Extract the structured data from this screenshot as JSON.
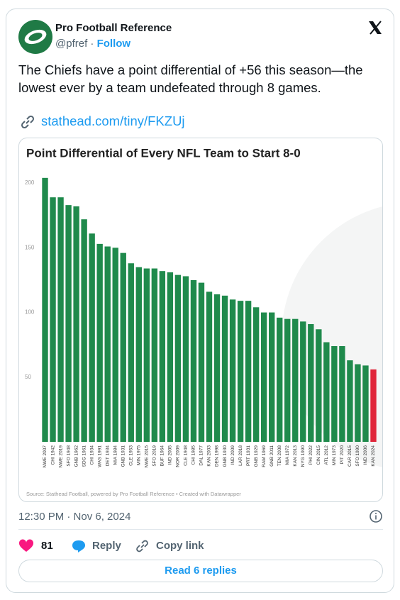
{
  "header": {
    "name": "Pro Football Reference",
    "handle": "@pfref",
    "separator": "·",
    "follow": "Follow"
  },
  "tweet": {
    "text": "The Chiefs have a point differential of +56 this season—the lowest ever by a team undefeated through 8 games.",
    "link": "stathead.com/tiny/FKZUj"
  },
  "chart_data": {
    "type": "bar",
    "title": "Point Differential of Every NFL Team to Start 8-0",
    "categories": [
      "NWE 2007",
      "CHI 1942",
      "NWE 2019",
      "SFO 1948",
      "GNB 1962",
      "SDG 1961",
      "CHI 1934",
      "WAS 1991",
      "DET 1934",
      "MIA 1984",
      "GNB 1931",
      "CLE 1953",
      "MIN 1975",
      "NWE 2015",
      "SFO 2019",
      "BUF 1964",
      "IND 2005",
      "NOR 2009",
      "CLE 1948",
      "CHI 1985",
      "DAL 1977",
      "KAN 2003",
      "DEN 1998",
      "GNB 1930",
      "IND 2009",
      "LAR 2018",
      "PRT 1931",
      "GNB 1929",
      "RAM 1969",
      "GNB 2011",
      "TEN 2008",
      "MIA 1972",
      "KAN 2013",
      "NYG 1990",
      "PHI 2022",
      "CIN 2015",
      "ATL 2012",
      "MIN 1973",
      "PIT 2020",
      "CAR 2015",
      "SFO 1990",
      "IND 2006",
      "KAN 2024"
    ],
    "values": [
      204,
      189,
      189,
      183,
      182,
      172,
      161,
      153,
      151,
      150,
      146,
      138,
      135,
      134,
      134,
      132,
      131,
      129,
      128,
      125,
      123,
      116,
      114,
      113,
      110,
      109,
      109,
      104,
      100,
      100,
      96,
      95,
      95,
      93,
      91,
      87,
      77,
      74,
      74,
      63,
      60,
      59,
      56
    ],
    "colors": [
      "#1f8a4c",
      "#1f8a4c",
      "#1f8a4c",
      "#1f8a4c",
      "#1f8a4c",
      "#1f8a4c",
      "#1f8a4c",
      "#1f8a4c",
      "#1f8a4c",
      "#1f8a4c",
      "#1f8a4c",
      "#1f8a4c",
      "#1f8a4c",
      "#1f8a4c",
      "#1f8a4c",
      "#1f8a4c",
      "#1f8a4c",
      "#1f8a4c",
      "#1f8a4c",
      "#1f8a4c",
      "#1f8a4c",
      "#1f8a4c",
      "#1f8a4c",
      "#1f8a4c",
      "#1f8a4c",
      "#1f8a4c",
      "#1f8a4c",
      "#1f8a4c",
      "#1f8a4c",
      "#1f8a4c",
      "#1f8a4c",
      "#1f8a4c",
      "#1f8a4c",
      "#1f8a4c",
      "#1f8a4c",
      "#1f8a4c",
      "#1f8a4c",
      "#1f8a4c",
      "#1f8a4c",
      "#1f8a4c",
      "#1f8a4c",
      "#1f8a4c",
      "#e0263a"
    ],
    "ylim": [
      0,
      205
    ],
    "yticks": [
      50,
      100,
      150,
      200
    ],
    "grid": false,
    "source": "Source: Stathead Football, powered by Pro Football Reference • Created with Datawrapper"
  },
  "footer": {
    "timestamp": "12:30 PM · Nov 6, 2024",
    "likes": "81",
    "reply": "Reply",
    "copy": "Copy link",
    "read": "Read 6 replies"
  }
}
